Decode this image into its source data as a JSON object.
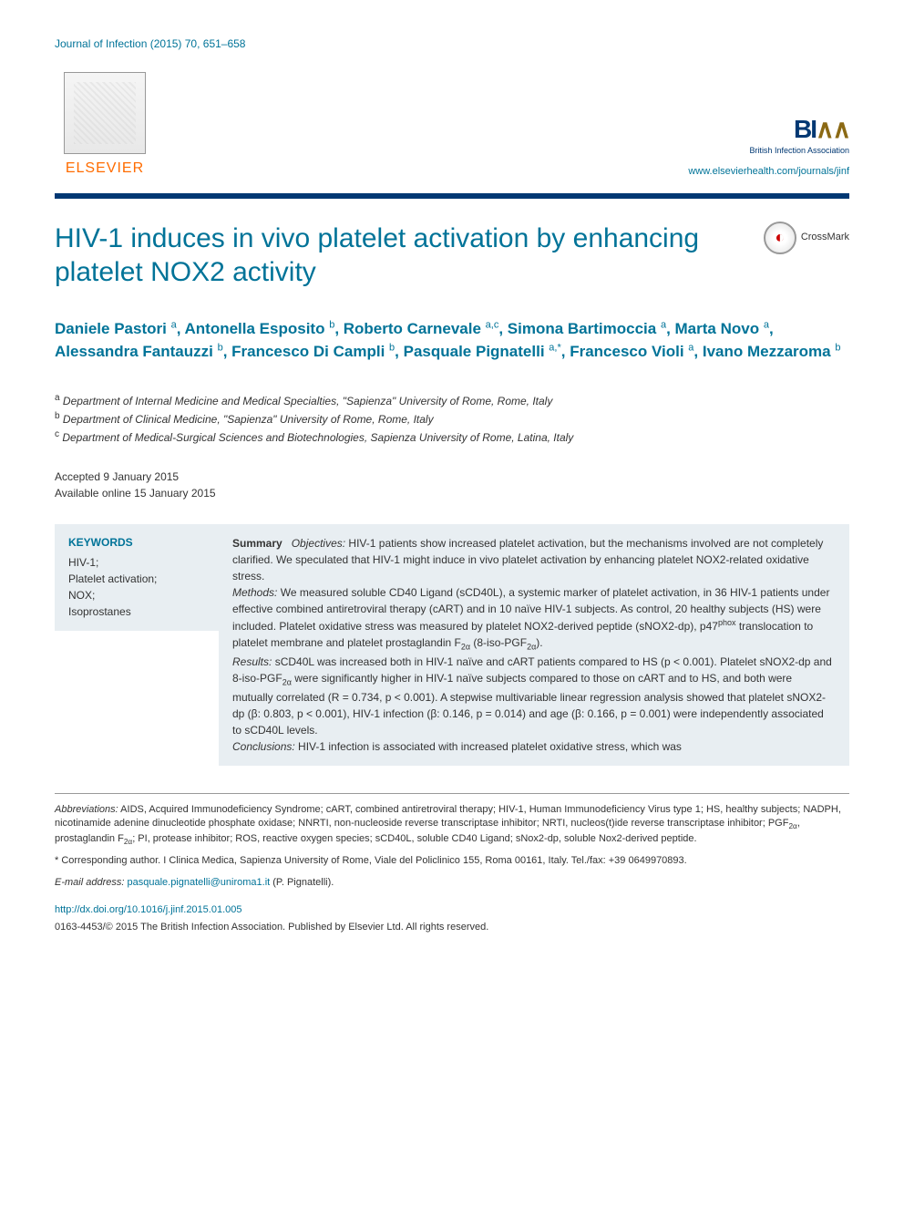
{
  "journal_ref": "Journal of Infection (2015) 70, 651–658",
  "publisher": {
    "name": "ELSEVIER",
    "journal_url": "www.elsevierhealth.com/journals/jinf"
  },
  "association": {
    "acronym": "BIA",
    "name": "British Infection Association"
  },
  "crossmark_label": "CrossMark",
  "title": "HIV-1 induces in vivo platelet activation by enhancing platelet NOX2 activity",
  "authors_html": "Daniele Pastori <sup>a</sup>, Antonella Esposito <sup>b</sup>, Roberto Carnevale <sup>a,c</sup>, Simona Bartimoccia <sup>a</sup>, Marta Novo <sup>a</sup>, Alessandra Fantauzzi <sup>b</sup>, Francesco Di Campli <sup>b</sup>, Pasquale Pignatelli <sup>a,*</sup>, Francesco Violi <sup>a</sup>, Ivano Mezzaroma <sup>b</sup>",
  "affiliations": [
    {
      "sup": "a",
      "text": "Department of Internal Medicine and Medical Specialties, \"Sapienza\" University of Rome, Rome, Italy"
    },
    {
      "sup": "b",
      "text": "Department of Clinical Medicine, \"Sapienza\" University of Rome, Rome, Italy"
    },
    {
      "sup": "c",
      "text": "Department of Medical-Surgical Sciences and Biotechnologies, Sapienza University of Rome, Latina, Italy"
    }
  ],
  "dates": {
    "accepted": "Accepted 9 January 2015",
    "online": "Available online 15 January 2015"
  },
  "keywords": {
    "title": "KEYWORDS",
    "items": "HIV-1;\nPlatelet activation;\nNOX;\nIsoprostanes"
  },
  "summary": {
    "label": "Summary",
    "objectives_label": "Objectives:",
    "objectives": "HIV-1 patients show increased platelet activation, but the mechanisms involved are not completely clarified. We speculated that HIV-1 might induce in vivo platelet activation by enhancing platelet NOX2-related oxidative stress.",
    "methods_label": "Methods:",
    "methods_html": "We measured soluble CD40 Ligand (sCD40L), a systemic marker of platelet activation, in 36 HIV-1 patients under effective combined antiretroviral therapy (cART) and in 10 naïve HIV-1 subjects. As control, 20 healthy subjects (HS) were included. Platelet oxidative stress was measured by platelet NOX2-derived peptide (sNOX2-dp), p47<sup>phox</sup> translocation to platelet membrane and platelet prostaglandin F<sub>2α</sub> (8-iso-PGF<sub>2α</sub>).",
    "results_label": "Results:",
    "results_html": "sCD40L was increased both in HIV-1 naïve and cART patients compared to HS (p < 0.001). Platelet sNOX2-dp and 8-iso-PGF<sub>2α</sub> were significantly higher in HIV-1 naïve subjects compared to those on cART and to HS, and both were mutually correlated (R = 0.734, p < 0.001). A stepwise multivariable linear regression analysis showed that platelet sNOX2-dp (β: 0.803, p < 0.001), HIV-1 infection (β: 0.146, p = 0.014) and age (β: 0.166, p = 0.001) were independently associated to sCD40L levels.",
    "conclusions_label": "Conclusions:",
    "conclusions": "HIV-1 infection is associated with increased platelet oxidative stress, which was"
  },
  "abbreviations": {
    "label": "Abbreviations:",
    "text_html": "AIDS, Acquired Immunodeficiency Syndrome; cART, combined antiretroviral therapy; HIV-1, Human Immunodeficiency Virus type 1; HS, healthy subjects; NADPH, nicotinamide adenine dinucleotide phosphate oxidase; NNRTI, non-nucleoside reverse transcriptase inhibitor; NRTI, nucleos(t)ide reverse transcriptase inhibitor; PGF<sub>2α</sub>, prostaglandin F<sub>2α</sub>; PI, protease inhibitor; ROS, reactive oxygen species; sCD40L, soluble CD40 Ligand; sNox2-dp, soluble Nox2-derived peptide."
  },
  "corresponding": "* Corresponding author. I Clinica Medica, Sapienza University of Rome, Viale del Policlinico 155, Roma 00161, Italy. Tel./fax: +39 0649970893.",
  "email": {
    "label": "E-mail address:",
    "address": "pasquale.pignatelli@uniroma1.it",
    "person": "(P. Pignatelli)."
  },
  "doi": "http://dx.doi.org/10.1016/j.jinf.2015.01.005",
  "copyright": "0163-4453/© 2015 The British Infection Association. Published by Elsevier Ltd. All rights reserved."
}
